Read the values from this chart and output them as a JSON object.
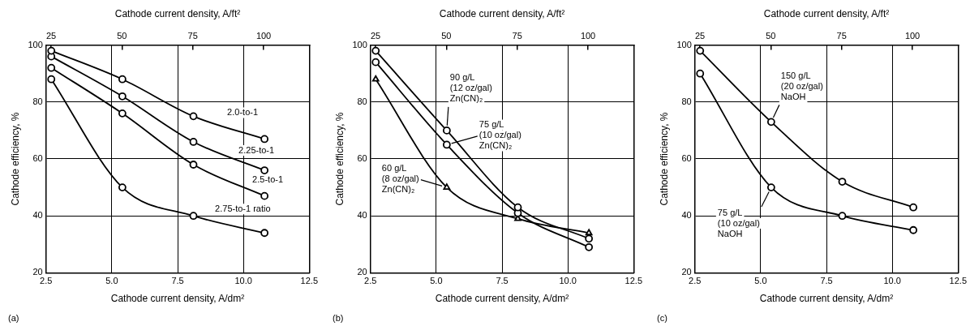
{
  "chart_data": [
    {
      "type": "line",
      "xlabel": "Cathode current density, A/dm²",
      "x2label": "Cathode current density, A/ft²",
      "ylabel": "Cathode efficiency, %",
      "annotations": [
        "(a)"
      ],
      "x": [
        2.7,
        5.4,
        8.1,
        10.8
      ],
      "xlim": [
        2.5,
        12.5
      ],
      "xticks": [
        {
          "value": 2.5,
          "label": "2.5"
        },
        {
          "value": 5,
          "label": "5.0"
        },
        {
          "value": 7.5,
          "label": "7.5"
        },
        {
          "value": 10,
          "label": "10.0"
        },
        {
          "value": 12.5,
          "label": "12.5"
        }
      ],
      "x2lim": [
        23.2,
        116.1
      ],
      "x2ticks": [
        25,
        50,
        75,
        100
      ],
      "ylim": [
        20,
        100
      ],
      "yticks": [
        20,
        40,
        60,
        80,
        100
      ],
      "grid": true,
      "marker": "circle",
      "line_style": "solid",
      "series": [
        {
          "name": "2.0-to-1",
          "color": "#000000",
          "values": [
            98,
            88,
            75,
            67
          ]
        },
        {
          "name": "2.25-to-1",
          "color": "#000000",
          "values": [
            96,
            82,
            66,
            56
          ]
        },
        {
          "name": "2.5-to-1",
          "color": "#000000",
          "values": [
            92,
            76,
            58,
            47
          ]
        },
        {
          "name": "2.75-to-1 ratio",
          "color": "#000000",
          "values": [
            88,
            50,
            40,
            34
          ]
        }
      ]
    },
    {
      "type": "line",
      "xlabel": "Cathode current density, A/dm²",
      "x2label": "Cathode current density, A/ft²",
      "ylabel": "Cathode efficiency, %",
      "annotations": [
        "(b)"
      ],
      "x": [
        2.7,
        5.4,
        8.1,
        10.8
      ],
      "xlim": [
        2.5,
        12.5
      ],
      "xticks": [
        {
          "value": 2.5,
          "label": "2.5"
        },
        {
          "value": 5,
          "label": "5.0"
        },
        {
          "value": 7.5,
          "label": "7.5"
        },
        {
          "value": 10,
          "label": "10.0"
        },
        {
          "value": 12.5,
          "label": "12.5"
        }
      ],
      "x2lim": [
        23.2,
        116.1
      ],
      "x2ticks": [
        25,
        50,
        75,
        100
      ],
      "ylim": [
        20,
        100
      ],
      "yticks": [
        20,
        40,
        60,
        80,
        100
      ],
      "grid": true,
      "line_style": "solid",
      "series": [
        {
          "name": "90 g/L\n(12 oz/gal)\nZn(CN)₂",
          "color": "#000000",
          "marker": "circle",
          "values": [
            98,
            70,
            43,
            32
          ]
        },
        {
          "name": "75 g/L\n(10 oz/gal)\nZn(CN)₂",
          "color": "#000000",
          "marker": "circle",
          "values": [
            94,
            65,
            41,
            29
          ]
        },
        {
          "name": "60 g/L\n(8 oz/gal)\nZn(CN)₂",
          "color": "#000000",
          "marker": "triangle",
          "values": [
            88,
            50,
            39,
            34
          ]
        }
      ]
    },
    {
      "type": "line",
      "xlabel": "Cathode current density, A/dm²",
      "x2label": "Cathode current density, A/ft²",
      "ylabel": "Cathode efficiency, %",
      "annotations": [
        "(c)"
      ],
      "x": [
        2.7,
        5.4,
        8.1,
        10.8
      ],
      "xlim": [
        2.5,
        12.5
      ],
      "xticks": [
        {
          "value": 2.5,
          "label": "2.5"
        },
        {
          "value": 5,
          "label": "5.0"
        },
        {
          "value": 7.5,
          "label": "7.5"
        },
        {
          "value": 10,
          "label": "10.0"
        },
        {
          "value": 12.5,
          "label": "12.5"
        }
      ],
      "x2lim": [
        23.2,
        116.1
      ],
      "x2ticks": [
        25,
        50,
        75,
        100
      ],
      "ylim": [
        20,
        100
      ],
      "yticks": [
        20,
        40,
        60,
        80,
        100
      ],
      "grid": true,
      "marker": "circle",
      "line_style": "solid",
      "series": [
        {
          "name": "150 g/L\n(20 oz/gal)\nNaOH",
          "color": "#000000",
          "values": [
            98,
            73,
            52,
            43
          ]
        },
        {
          "name": "75 g/L\n(10 oz/gal)\nNaOH",
          "color": "#000000",
          "values": [
            90,
            50,
            40,
            35
          ]
        }
      ]
    }
  ]
}
